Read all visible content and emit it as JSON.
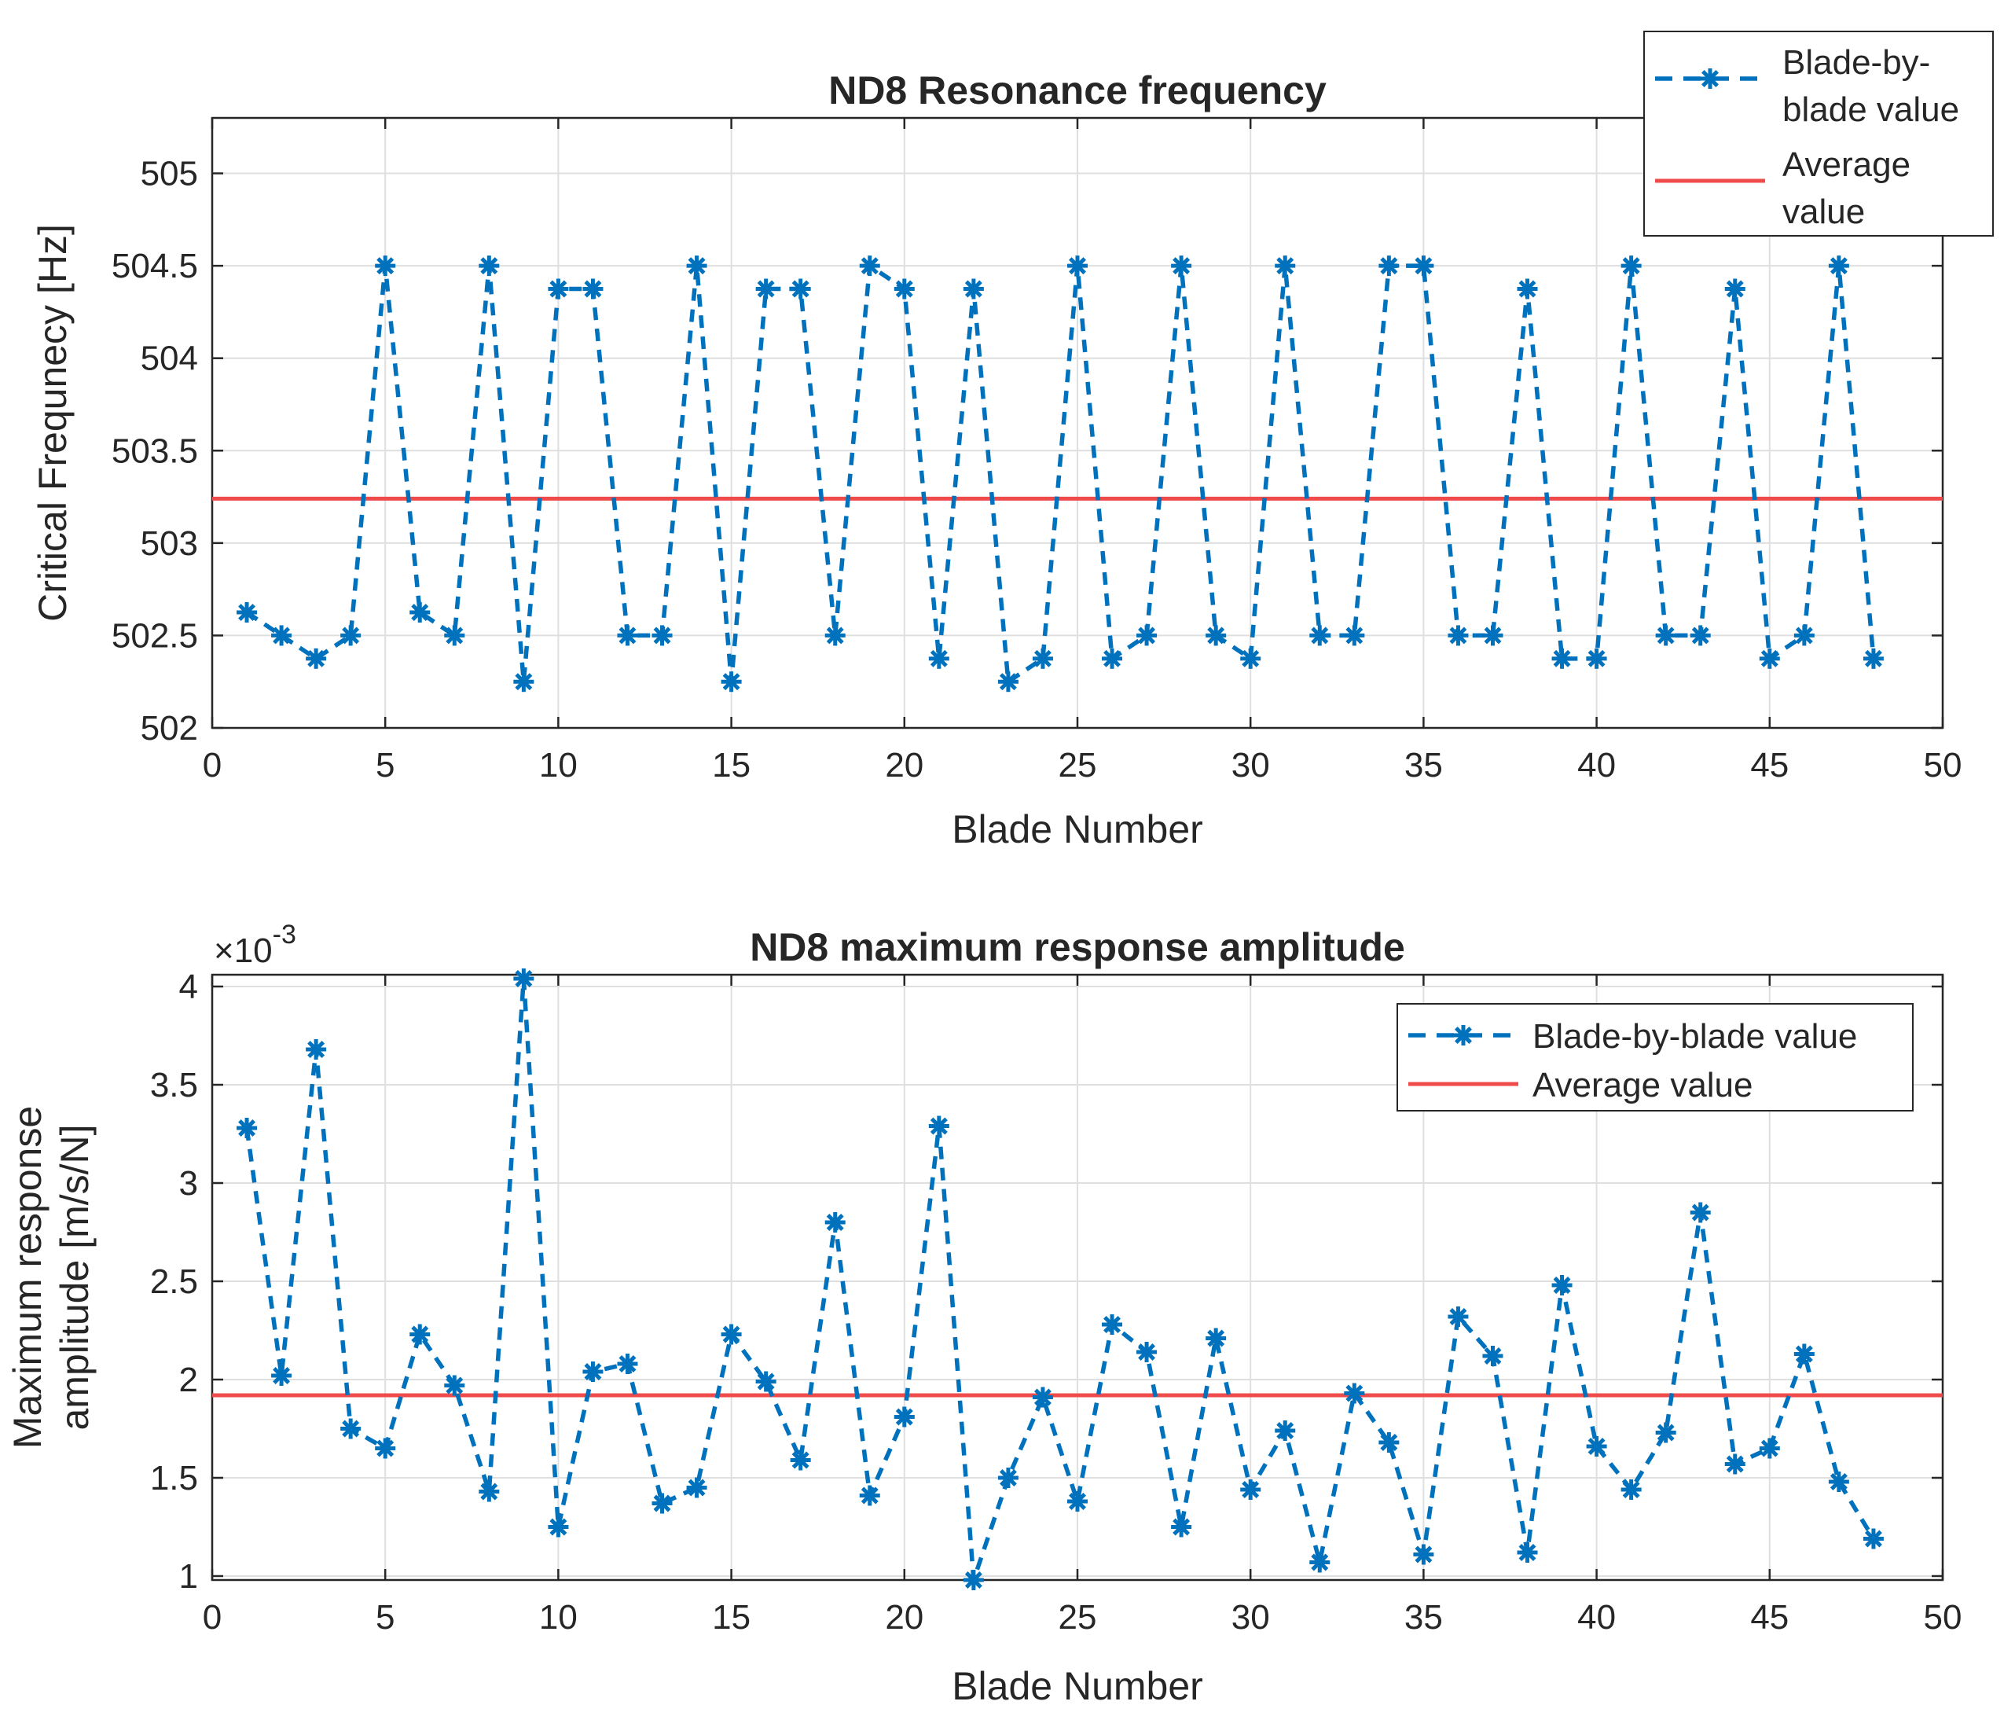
{
  "chart_data": [
    {
      "type": "line",
      "title": "ND8 Resonance frequency",
      "xlabel": "Blade Number",
      "ylabel": "Critical Frequnecy [Hz]",
      "xlim": [
        0,
        50
      ],
      "ylim": [
        502,
        505.3
      ],
      "xticks": [
        0,
        5,
        10,
        15,
        20,
        25,
        30,
        35,
        40,
        45,
        50
      ],
      "yticks": [
        502,
        502.5,
        503,
        503.5,
        504,
        504.5,
        505
      ],
      "grid": true,
      "legend_position": "top-right-outside",
      "legend": [
        "Blade-by-\nblade value",
        "Average\nvalue"
      ],
      "x": [
        1,
        2,
        3,
        4,
        5,
        6,
        7,
        8,
        9,
        10,
        11,
        12,
        13,
        14,
        15,
        16,
        17,
        18,
        19,
        20,
        21,
        22,
        23,
        24,
        25,
        26,
        27,
        28,
        29,
        30,
        31,
        32,
        33,
        34,
        35,
        36,
        37,
        38,
        39,
        40,
        41,
        42,
        43,
        44,
        45,
        46,
        47,
        48
      ],
      "series": [
        {
          "values": [
            502.625,
            502.5,
            502.375,
            502.5,
            504.5,
            502.625,
            502.5,
            504.5,
            502.25,
            504.375,
            504.375,
            502.5,
            502.5,
            504.5,
            502.25,
            504.375,
            504.375,
            502.5,
            504.5,
            504.375,
            502.375,
            504.375,
            502.25,
            502.375,
            504.5,
            502.375,
            502.5,
            504.5,
            502.5,
            502.375,
            504.5,
            502.5,
            502.5,
            504.5,
            504.5,
            502.5,
            502.5,
            504.375,
            502.375,
            502.375,
            504.5,
            502.5,
            502.5,
            504.375,
            502.375,
            502.5,
            504.5,
            502.375
          ],
          "color": "#0072BD",
          "style": "dashed-asterisk"
        }
      ],
      "average": {
        "value": 503.24,
        "color": "#EF4B4B"
      }
    },
    {
      "type": "line",
      "title": "ND8 maximum response amplitude",
      "xlabel": "Blade Number",
      "ylabel": "Maximum response\namplitude [m/s/N]",
      "exponent_base": "×10",
      "exponent_power": "-3",
      "xlim": [
        0,
        50
      ],
      "ylim": [
        0.98,
        4.06
      ],
      "xticks": [
        0,
        5,
        10,
        15,
        20,
        25,
        30,
        35,
        40,
        45,
        50
      ],
      "yticks": [
        1,
        1.5,
        2,
        2.5,
        3,
        3.5,
        4
      ],
      "grid": true,
      "legend_position": "top-right",
      "legend": [
        "Blade-by-blade value",
        "Average value"
      ],
      "x": [
        1,
        2,
        3,
        4,
        5,
        6,
        7,
        8,
        9,
        10,
        11,
        12,
        13,
        14,
        15,
        16,
        17,
        18,
        19,
        20,
        21,
        22,
        23,
        24,
        25,
        26,
        27,
        28,
        29,
        30,
        31,
        32,
        33,
        34,
        35,
        36,
        37,
        38,
        39,
        40,
        41,
        42,
        43,
        44,
        45,
        46,
        47,
        48
      ],
      "series": [
        {
          "values": [
            3.28,
            2.02,
            3.68,
            1.75,
            1.65,
            2.23,
            1.97,
            1.43,
            4.04,
            1.25,
            2.04,
            2.08,
            1.37,
            1.45,
            2.23,
            1.99,
            1.59,
            2.8,
            1.41,
            1.81,
            3.29,
            0.98,
            1.5,
            1.91,
            1.38,
            2.28,
            2.14,
            1.25,
            2.21,
            1.44,
            1.74,
            1.07,
            1.93,
            1.68,
            1.11,
            2.32,
            2.12,
            1.12,
            2.48,
            1.66,
            1.44,
            1.73,
            2.85,
            1.57,
            1.65,
            2.13,
            1.48,
            1.19
          ],
          "color": "#0072BD",
          "style": "dashed-asterisk"
        }
      ],
      "average": {
        "value": 1.92,
        "color": "#EF4B4B"
      }
    }
  ]
}
